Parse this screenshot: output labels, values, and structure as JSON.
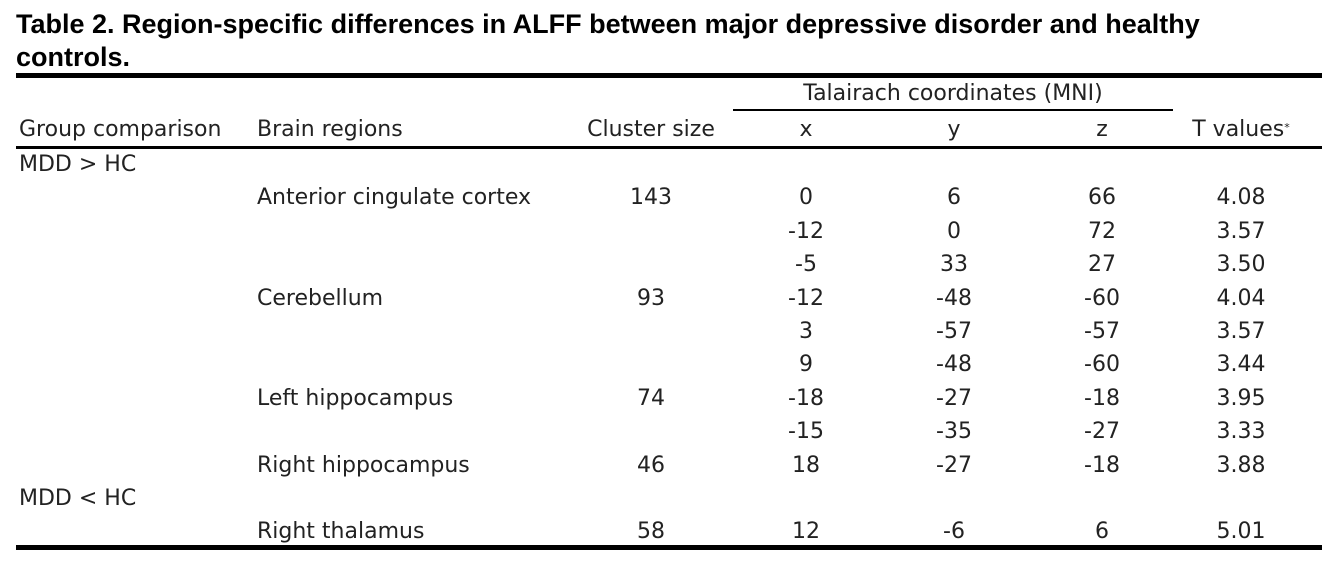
{
  "caption": "Table 2. Region-specific differences in ALFF between major depressive disorder and healthy controls.",
  "headers": {
    "group": "Group comparison",
    "region": "Brain regions",
    "cluster": "Cluster size",
    "talairach": "Talairach coordinates (MNI)",
    "x": "x",
    "y": "y",
    "z": "z",
    "t": "T values",
    "t_mark": "*"
  },
  "rows": [
    {
      "group": "MDD > HC",
      "region": "",
      "cluster": "",
      "x": "",
      "y": "",
      "z": "",
      "t": ""
    },
    {
      "group": "",
      "region": "Anterior cingulate cortex",
      "cluster": "143",
      "x": "0",
      "y": "6",
      "z": "66",
      "t": "4.08"
    },
    {
      "group": "",
      "region": "",
      "cluster": "",
      "x": "-12",
      "y": "0",
      "z": "72",
      "t": "3.57"
    },
    {
      "group": "",
      "region": "",
      "cluster": "",
      "x": "-5",
      "y": "33",
      "z": "27",
      "t": "3.50"
    },
    {
      "group": "",
      "region": "Cerebellum",
      "cluster": "93",
      "x": "-12",
      "y": "-48",
      "z": "-60",
      "t": "4.04"
    },
    {
      "group": "",
      "region": "",
      "cluster": "",
      "x": "3",
      "y": "-57",
      "z": "-57",
      "t": "3.57"
    },
    {
      "group": "",
      "region": "",
      "cluster": "",
      "x": "9",
      "y": "-48",
      "z": "-60",
      "t": "3.44"
    },
    {
      "group": "",
      "region": "Left hippocampus",
      "cluster": "74",
      "x": "-18",
      "y": "-27",
      "z": "-18",
      "t": "3.95"
    },
    {
      "group": "",
      "region": "",
      "cluster": "",
      "x": "-15",
      "y": "-35",
      "z": "-27",
      "t": "3.33"
    },
    {
      "group": "",
      "region": "Right hippocampus",
      "cluster": "46",
      "x": "18",
      "y": "-27",
      "z": "-18",
      "t": "3.88"
    },
    {
      "group": "MDD < HC",
      "region": "",
      "cluster": "",
      "x": "",
      "y": "",
      "z": "",
      "t": ""
    },
    {
      "group": "",
      "region": "Right thalamus",
      "cluster": "58",
      "x": "12",
      "y": "-6",
      "z": "6",
      "t": "5.01"
    }
  ]
}
